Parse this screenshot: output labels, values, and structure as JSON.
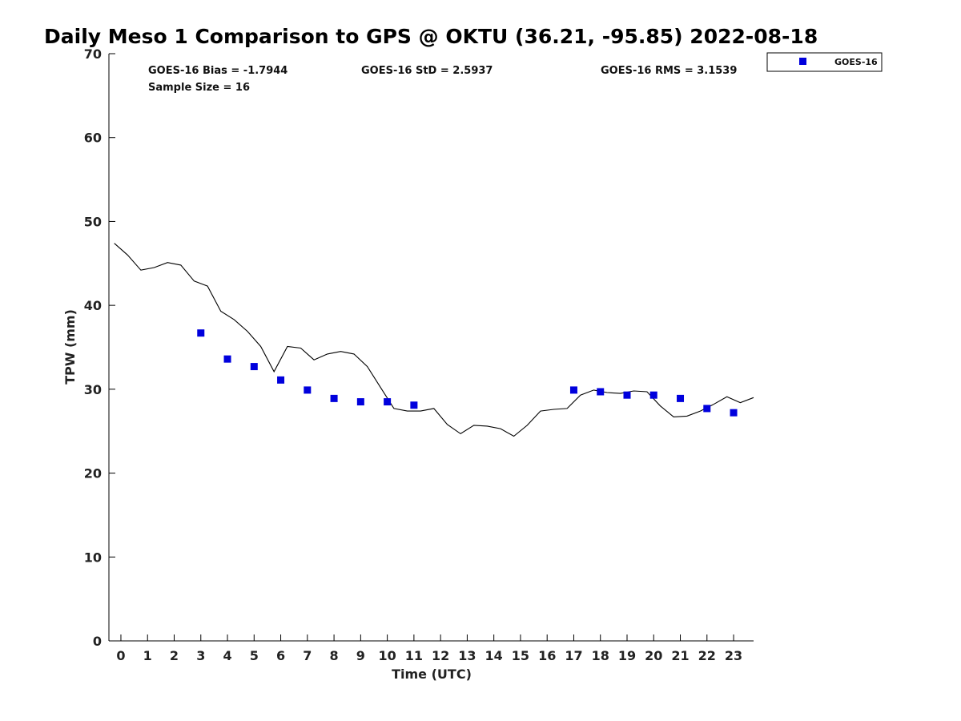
{
  "chart_data": {
    "type": "line",
    "title": "Daily Meso 1 Comparison to GPS @ OKTU (36.21, -95.85) 2022-08-18",
    "xlabel": "Time (UTC)",
    "ylabel": "TPW (mm)",
    "xlim": [
      -0.45,
      23.75
    ],
    "ylim": [
      0,
      70
    ],
    "x_ticks": [
      0,
      1,
      2,
      3,
      4,
      5,
      6,
      7,
      8,
      9,
      10,
      11,
      12,
      13,
      14,
      15,
      16,
      17,
      18,
      19,
      20,
      21,
      22,
      23
    ],
    "y_ticks": [
      0,
      10,
      20,
      30,
      40,
      50,
      60,
      70
    ],
    "grid": false,
    "legend_position": "top-right, outside plot",
    "stats": {
      "bias": "GOES-16 Bias = -1.7944",
      "std": "GOES-16 StD = 2.5937",
      "rms": "GOES-16 RMS = 3.1539",
      "sample_size": "Sample Size = 16"
    },
    "series": [
      {
        "role": "reference line",
        "color": "#000000",
        "x": [
          -0.25,
          0.25,
          0.75,
          1.25,
          1.75,
          2.25,
          2.75,
          3.25,
          3.75,
          4.25,
          4.75,
          5.25,
          5.75,
          6.25,
          6.75,
          7.25,
          7.75,
          8.25,
          8.75,
          9.25,
          9.75,
          10.25,
          10.75,
          11.25,
          11.75,
          12.25,
          12.75,
          13.25,
          13.75,
          14.25,
          14.75,
          15.25,
          15.75,
          16.25,
          16.75,
          17.25,
          17.75,
          18.25,
          18.75,
          19.25,
          19.75,
          20.25,
          20.75,
          21.25,
          21.75,
          22.25,
          22.75,
          23.25,
          23.75
        ],
        "y": [
          47.4,
          46.0,
          44.2,
          44.5,
          45.1,
          44.8,
          42.9,
          42.3,
          39.3,
          38.3,
          36.9,
          35.1,
          32.1,
          35.1,
          34.9,
          33.5,
          34.2,
          34.5,
          34.2,
          32.7,
          30.2,
          27.7,
          27.4,
          27.4,
          27.7,
          25.8,
          24.7,
          25.7,
          25.6,
          25.3,
          24.4,
          25.7,
          27.4,
          27.6,
          27.7,
          29.3,
          29.9,
          29.6,
          29.5,
          29.8,
          29.7,
          28.0,
          26.7,
          26.8,
          27.4,
          28.2,
          29.1,
          28.4,
          29.0
        ]
      },
      {
        "name": "GOES-16",
        "color": "#0000dd",
        "marker": "square",
        "x": [
          3,
          4,
          5,
          6,
          7,
          8,
          9,
          10,
          11,
          17,
          18,
          19,
          20,
          21,
          22,
          23
        ],
        "y": [
          36.7,
          33.6,
          32.7,
          31.1,
          29.9,
          28.9,
          28.5,
          28.5,
          28.1,
          29.9,
          29.7,
          29.3,
          29.3,
          28.9,
          27.7,
          27.2
        ]
      }
    ]
  }
}
